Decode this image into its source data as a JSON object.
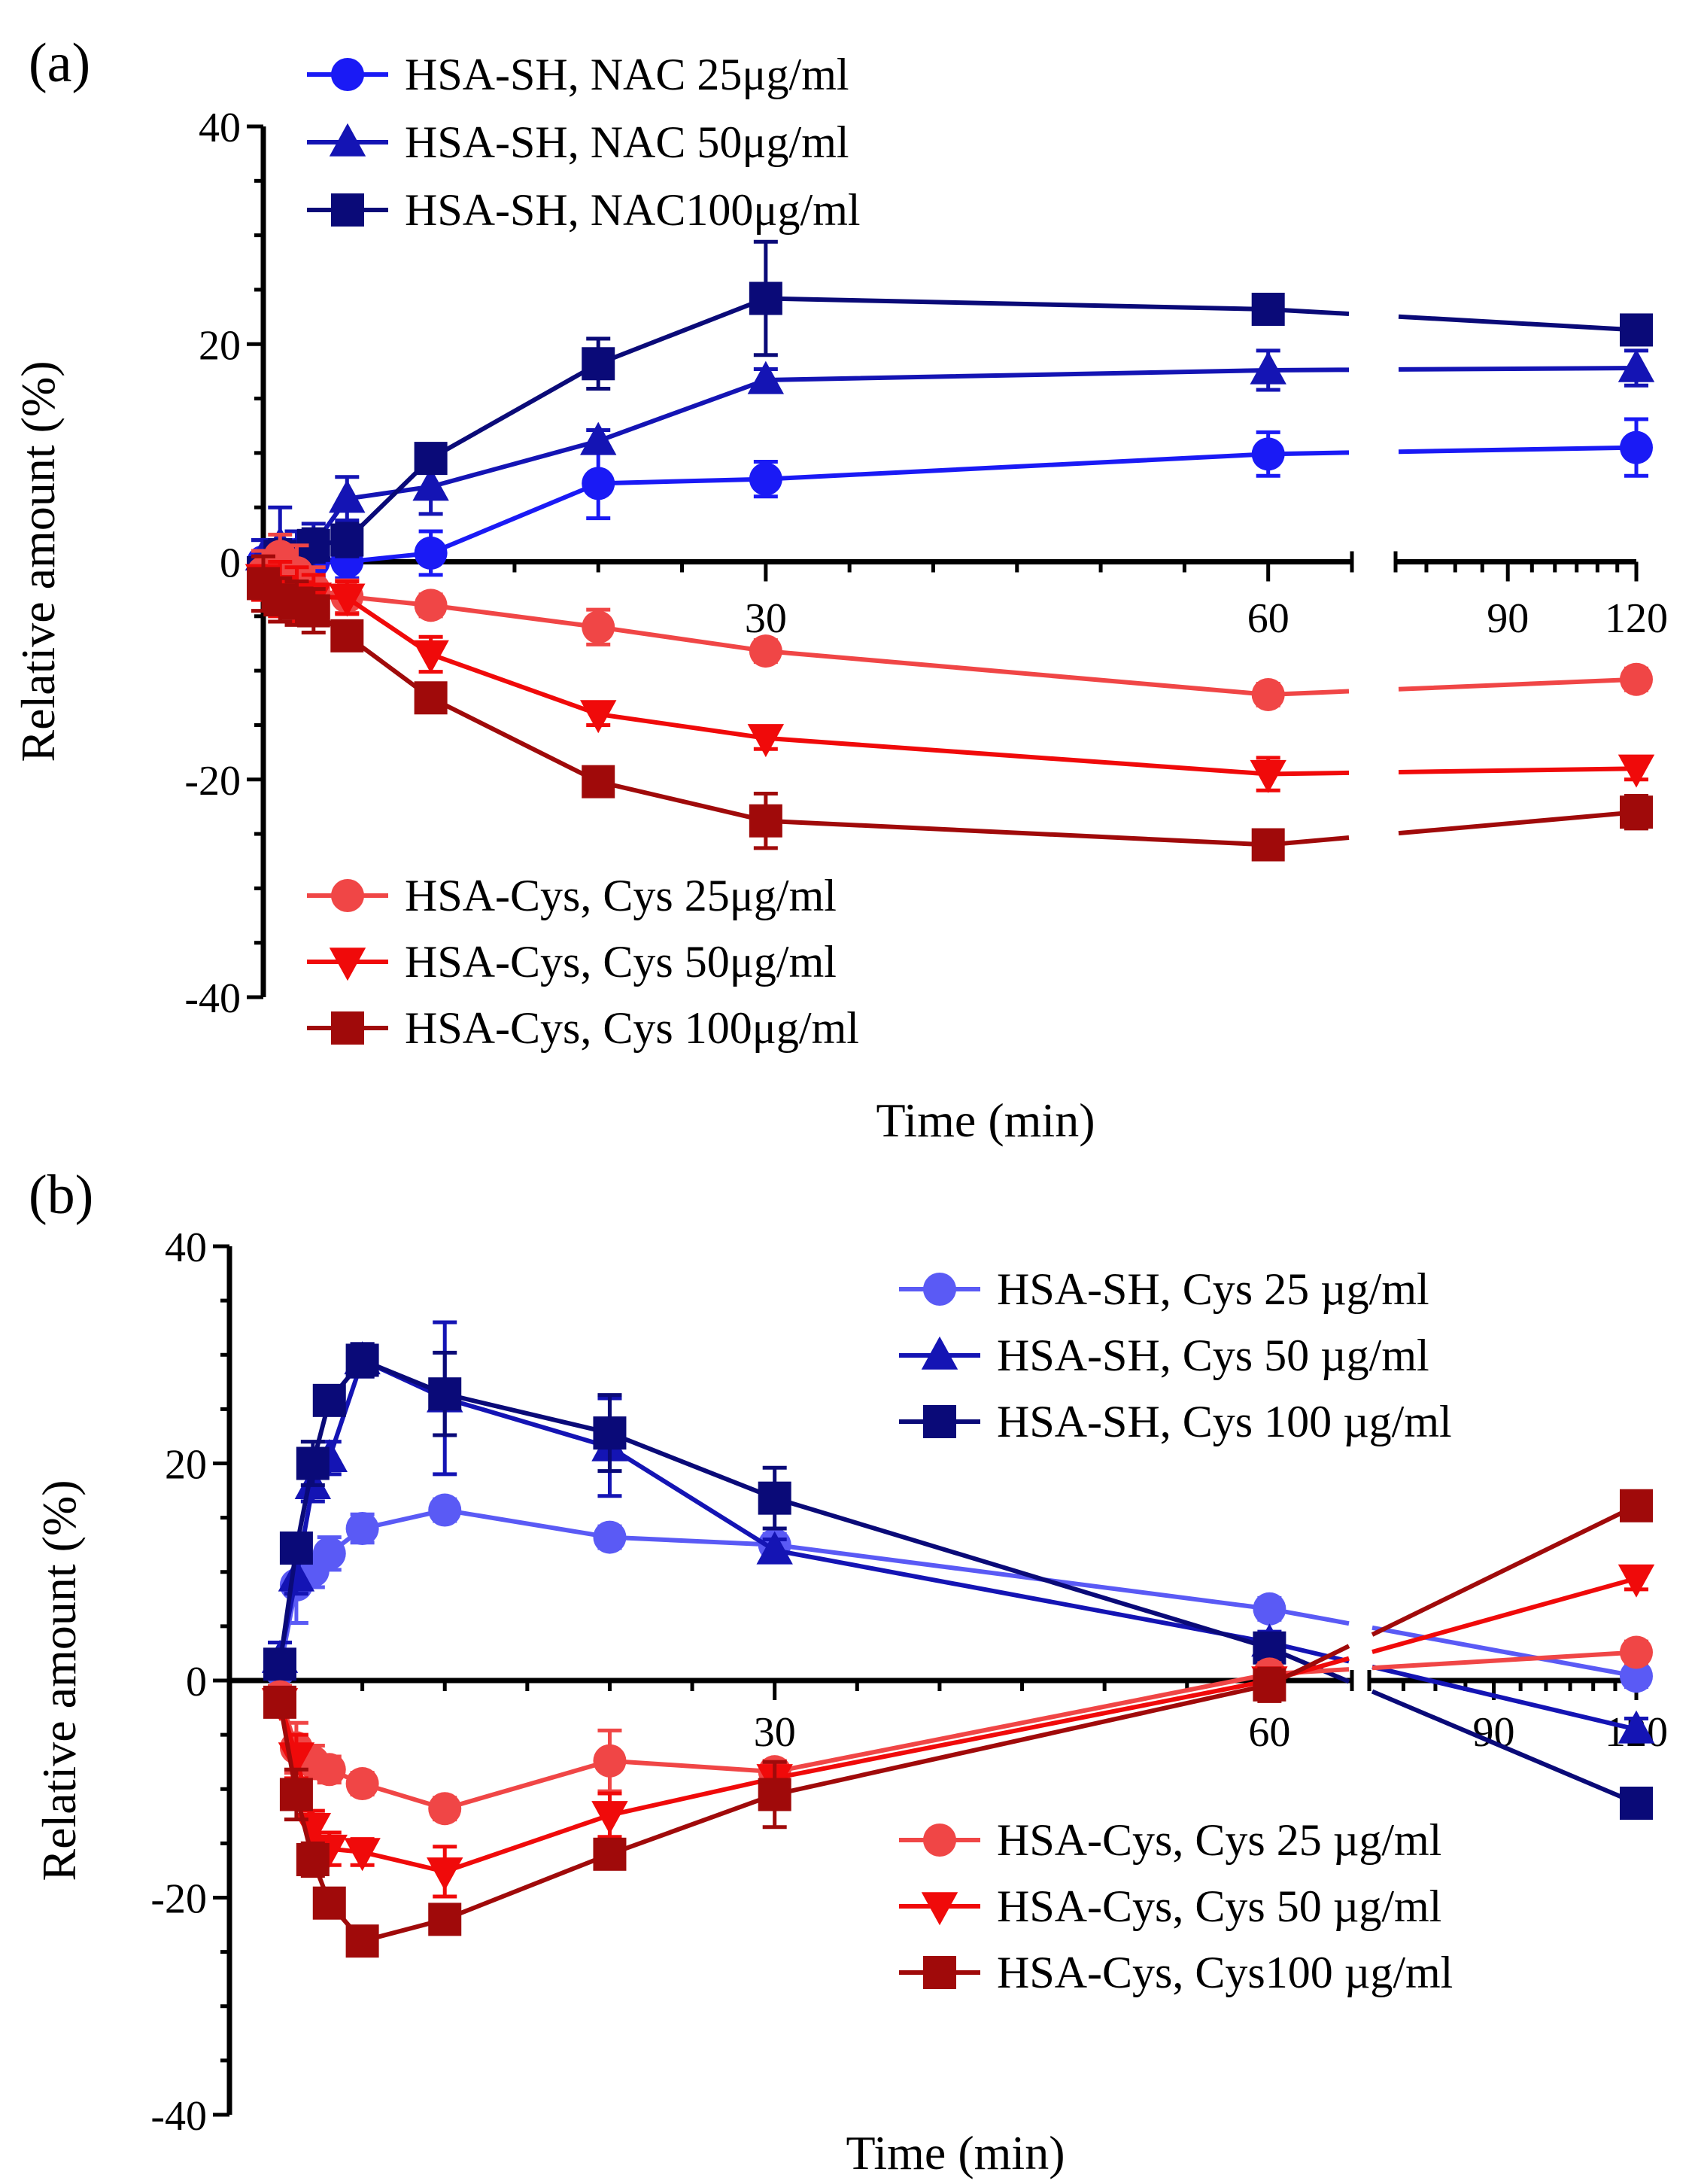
{
  "figure": {
    "panels_count": 2
  },
  "chart_data": [
    {
      "type": "line",
      "panel_label": "(a)",
      "xlabel": "Time (min)",
      "ylabel": "Relative amount (%)",
      "ylim": [
        -40,
        40
      ],
      "yticks": [
        "-40",
        "-20",
        "0",
        "20",
        "40"
      ],
      "xticks": [
        "30",
        "60",
        "90",
        "120"
      ],
      "x_axis_break": {
        "segment1": [
          0,
          65
        ],
        "segment2": [
          70,
          120
        ]
      },
      "grid": false,
      "legend_groups": [
        {
          "position": "top-left",
          "series": [
            0,
            1,
            2
          ]
        },
        {
          "position": "bottom-left",
          "series": [
            3,
            4,
            5
          ]
        }
      ],
      "series": [
        {
          "name": "HSA-SH, NAC 25μg/ml",
          "color": "#1a1af5",
          "marker": "circle",
          "x": [
            0,
            1,
            2,
            3,
            5,
            10,
            20,
            30,
            60,
            120
          ],
          "y": [
            0,
            0,
            0,
            0,
            0,
            0.8,
            7.2,
            7.6,
            9.9,
            10.5
          ],
          "err": [
            2,
            2,
            2,
            1.5,
            1.5,
            2,
            3.2,
            1.6,
            2,
            2.6
          ]
        },
        {
          "name": "HSA-SH, NAC 50μg/ml",
          "color": "#1414b4",
          "marker": "triangle",
          "x": [
            0,
            1,
            2,
            3,
            5,
            10,
            20,
            30,
            60,
            120
          ],
          "y": [
            0.5,
            1.5,
            0.8,
            1.5,
            5.8,
            6.9,
            11.1,
            16.7,
            17.6,
            17.8
          ],
          "err": [
            1.5,
            3.5,
            2,
            2,
            2,
            2.5,
            1,
            1,
            1.8,
            1.6
          ]
        },
        {
          "name": "HSA-SH, NAC100μg/ml",
          "color": "#0a0a78",
          "marker": "square",
          "x": [
            0,
            1,
            2,
            3,
            5,
            10,
            20,
            30,
            60,
            120
          ],
          "y": [
            -1,
            0.5,
            0,
            1.5,
            2,
            9.5,
            18.2,
            24.2,
            23.2,
            21.3
          ],
          "err": [
            2,
            1.5,
            1.5,
            1.5,
            1.5,
            1,
            2.3,
            5.2,
            1,
            1
          ]
        },
        {
          "name": "HSA-Cys, Cys 25μg/ml",
          "color": "#f04646",
          "marker": "circle",
          "x": [
            0,
            1,
            2,
            3,
            5,
            10,
            20,
            30,
            60,
            120
          ],
          "y": [
            -1,
            0.5,
            -1,
            -2.5,
            -3.2,
            -4,
            -6,
            -8.2,
            -12.2,
            -10.8
          ],
          "err": [
            2,
            2,
            2.5,
            2,
            1.5,
            1,
            1.6,
            1,
            1,
            1
          ]
        },
        {
          "name": "HSA-Cys, Cys 50μg/ml",
          "color": "#f00a0a",
          "marker": "triangle-down",
          "x": [
            0,
            1,
            2,
            3,
            5,
            10,
            20,
            30,
            60,
            120
          ],
          "y": [
            -1.5,
            -2.5,
            -3,
            -3.2,
            -3.3,
            -8.5,
            -14,
            -16.2,
            -19.5,
            -19
          ],
          "err": [
            2,
            2.5,
            2.5,
            2,
            1.5,
            1.6,
            1,
            1,
            1.5,
            1
          ]
        },
        {
          "name": "HSA-Cys, Cys 100μg/ml",
          "color": "#a00a0a",
          "marker": "square",
          "x": [
            0,
            1,
            2,
            3,
            5,
            10,
            20,
            30,
            60,
            120
          ],
          "y": [
            -2,
            -3.5,
            -3.8,
            -4.5,
            -6.8,
            -12.5,
            -20.2,
            -23.8,
            -26,
            -23
          ],
          "err": [
            2.5,
            2,
            2,
            2,
            1,
            1,
            1,
            2.5,
            1,
            1.5
          ]
        }
      ]
    },
    {
      "type": "line",
      "panel_label": "(b)",
      "xlabel": "Time (min)",
      "ylabel": "Relative amount (%)",
      "ylim": [
        -40,
        40
      ],
      "yticks": [
        "-40",
        "-20",
        "0",
        "20",
        "40"
      ],
      "xticks": [
        "30",
        "60",
        "90",
        "120"
      ],
      "x_axis_break": {
        "segment1": [
          0,
          65
        ],
        "segment2": [
          70,
          120
        ]
      },
      "grid": false,
      "legend_groups": [
        {
          "position": "top-right",
          "series": [
            0,
            1,
            2
          ]
        },
        {
          "position": "bottom-right",
          "series": [
            3,
            4,
            5
          ]
        }
      ],
      "series": [
        {
          "name": "HSA-SH, Cys 25 µg/ml",
          "color": "#5a5af5",
          "marker": "circle",
          "x": [
            0,
            1,
            2,
            3,
            5,
            10,
            20,
            30,
            60,
            120
          ],
          "y": [
            1,
            8.8,
            10.1,
            11.7,
            14,
            15.7,
            13.2,
            12.5,
            6.6,
            0.4
          ],
          "err": [
            1.5,
            3.5,
            1.5,
            1.5,
            1.3,
            1,
            1,
            1,
            1,
            1
          ]
        },
        {
          "name": "HSA-SH, Cys 50 µg/ml",
          "color": "#1414b4",
          "marker": "triangle",
          "x": [
            0,
            1,
            2,
            3,
            5,
            10,
            20,
            30,
            60,
            120
          ],
          "y": [
            2,
            9.5,
            18,
            20.5,
            29.5,
            26,
            21.5,
            12,
            3.5,
            -4.5
          ],
          "err": [
            1.5,
            1.5,
            1.5,
            1.5,
            1.5,
            7,
            4.5,
            1,
            1,
            1
          ]
        },
        {
          "name": "HSA-SH, Cys 100 µg/ml",
          "color": "#0a0a78",
          "marker": "square",
          "x": [
            0,
            1,
            2,
            3,
            5,
            10,
            20,
            30,
            60,
            120
          ],
          "y": [
            1.5,
            12.2,
            20,
            25.8,
            29.5,
            26.4,
            22.8,
            16.8,
            3,
            -11.3
          ],
          "err": [
            1,
            1.2,
            2,
            1.2,
            1.5,
            3.8,
            3.5,
            2.8,
            1,
            1
          ]
        },
        {
          "name": "HSA-Cys, Cys 25 µg/ml",
          "color": "#f04646",
          "marker": "circle",
          "x": [
            0,
            1,
            2,
            3,
            5,
            10,
            20,
            30,
            60,
            120
          ],
          "y": [
            -1.5,
            -6.2,
            -7.5,
            -8.2,
            -9.5,
            -11.8,
            -7.4,
            -8.4,
            0.6,
            2.6
          ],
          "err": [
            1,
            2.3,
            1.5,
            1.2,
            1,
            1,
            2.8,
            1,
            1,
            1
          ]
        },
        {
          "name": "HSA-Cys, Cys 50 µg/ml",
          "color": "#f00a0a",
          "marker": "triangle-down",
          "x": [
            0,
            1,
            2,
            3,
            5,
            10,
            20,
            30,
            60,
            120
          ],
          "y": [
            -2,
            -7,
            -13.5,
            -15.5,
            -15.8,
            -17.6,
            -12.4,
            -9,
            0,
            9.4
          ],
          "err": [
            1,
            2,
            1.5,
            1.5,
            1.2,
            2.3,
            2,
            1.5,
            1,
            1
          ]
        },
        {
          "name": "HSA-Cys, Cys100 µg/ml",
          "color": "#a00a0a",
          "marker": "square",
          "x": [
            0,
            1,
            2,
            3,
            5,
            10,
            20,
            30,
            60,
            120
          ],
          "y": [
            -2,
            -10.5,
            -16.5,
            -20.5,
            -24,
            -22,
            -16,
            -10.5,
            -0.4,
            16.1
          ],
          "err": [
            1,
            2.3,
            1.5,
            1.2,
            1,
            1,
            1,
            3,
            1.5,
            1.3
          ]
        }
      ]
    }
  ]
}
